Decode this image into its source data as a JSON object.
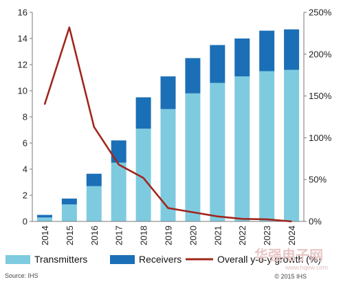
{
  "chart_data": {
    "type": "bar",
    "stacked": true,
    "categories": [
      "2014",
      "2015",
      "2016",
      "2017",
      "2018",
      "2019",
      "2020",
      "2021",
      "2022",
      "2023",
      "2024"
    ],
    "series": [
      {
        "name": "Transmitters",
        "type": "bar",
        "axis": "left",
        "color": "#7ecbe0",
        "values": [
          0.3,
          1.3,
          2.7,
          4.5,
          7.1,
          8.6,
          9.8,
          10.6,
          11.1,
          11.5,
          11.6
        ]
      },
      {
        "name": "Receivers",
        "type": "bar",
        "axis": "left",
        "color": "#1b6fb6",
        "values": [
          0.2,
          0.45,
          0.95,
          1.7,
          2.4,
          2.5,
          2.7,
          2.9,
          2.9,
          3.1,
          3.1
        ]
      },
      {
        "name": "Overall y-o-y growth (%)",
        "type": "line",
        "axis": "right",
        "color": "#a0261c",
        "values": [
          140,
          232,
          113,
          68,
          52,
          16,
          11,
          6,
          3,
          2.5,
          0
        ]
      }
    ],
    "ylim_left": [
      0,
      16
    ],
    "yticks_left": [
      "0",
      "2",
      "4",
      "6",
      "8",
      "10",
      "12",
      "14",
      "16"
    ],
    "ylim_right": [
      0,
      250
    ],
    "yticks_right": [
      "0%",
      "50%",
      "100%",
      "150%",
      "200%",
      "250%"
    ],
    "xlabel": "",
    "ylabel": "",
    "legend_position": "bottom",
    "grid": false
  },
  "source_text": "Source: IHS",
  "copyright_text": "© 2015 IHS",
  "watermark": {
    "text": "华强电子网",
    "sub": "www.hqew.com"
  }
}
